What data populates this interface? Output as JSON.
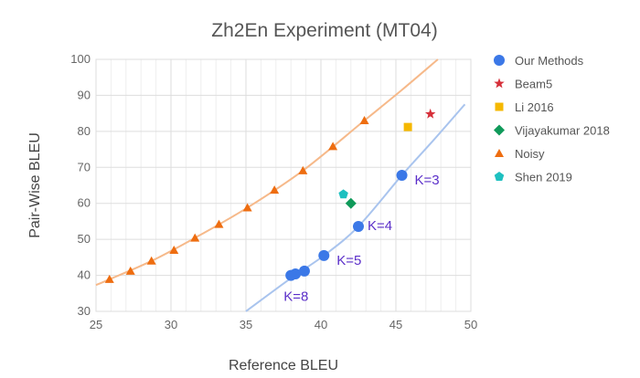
{
  "chart_data": {
    "type": "scatter",
    "title": "Zh2En Experiment (MT04)",
    "xlabel": "Reference BLEU",
    "ylabel": "Pair-Wise BLEU",
    "xlim": [
      25,
      50
    ],
    "ylim": [
      30,
      100
    ],
    "xticks": [
      25,
      30,
      35,
      40,
      45,
      50
    ],
    "yticks": [
      30,
      40,
      50,
      60,
      70,
      80,
      90,
      100
    ],
    "grid": true,
    "legend_position": "right",
    "series": [
      {
        "name": "Our Methods",
        "marker": "circle",
        "color": "#3b78e7",
        "points": [
          [
            45.4,
            67.8
          ],
          [
            42.5,
            53.6
          ],
          [
            40.2,
            45.5
          ],
          [
            38.9,
            41.2
          ],
          [
            38.3,
            40.4
          ],
          [
            38.0,
            40.0
          ]
        ],
        "trend_color": "#a9c4ee",
        "trend": [
          [
            35.0,
            30.0
          ],
          [
            38.0,
            39.2
          ],
          [
            40.2,
            45.5
          ],
          [
            42.5,
            53.6
          ],
          [
            45.4,
            67.8
          ],
          [
            47.5,
            77.5
          ],
          [
            49.6,
            87.5
          ]
        ]
      },
      {
        "name": "Beam5",
        "marker": "star",
        "color": "#d6303a",
        "points": [
          [
            47.3,
            84.8
          ]
        ]
      },
      {
        "name": "Li 2016",
        "marker": "square",
        "color": "#f5b800",
        "points": [
          [
            45.8,
            81.2
          ]
        ]
      },
      {
        "name": "Vijayakumar 2018",
        "marker": "diamond",
        "color": "#109a5a",
        "points": [
          [
            42.0,
            60.0
          ]
        ]
      },
      {
        "name": "Noisy",
        "marker": "triangle",
        "color": "#ee6d10",
        "points": [
          [
            25.9,
            38.9
          ],
          [
            27.3,
            41.2
          ],
          [
            28.7,
            44.0
          ],
          [
            30.2,
            47.0
          ],
          [
            31.6,
            50.4
          ],
          [
            33.2,
            54.2
          ],
          [
            35.1,
            58.8
          ],
          [
            36.9,
            63.7
          ],
          [
            38.8,
            69.1
          ],
          [
            40.8,
            75.8
          ],
          [
            42.9,
            83.0
          ]
        ],
        "trend_color": "#f6b98a",
        "trend": [
          [
            25.0,
            37.3
          ],
          [
            25.9,
            38.9
          ],
          [
            28.7,
            44.0
          ],
          [
            31.6,
            50.4
          ],
          [
            35.1,
            58.8
          ],
          [
            38.8,
            69.1
          ],
          [
            42.9,
            83.0
          ],
          [
            45.4,
            91.5
          ],
          [
            47.8,
            100.0
          ]
        ]
      },
      {
        "name": "Shen 2019",
        "marker": "pentagon",
        "color": "#1ec0c0",
        "points": [
          [
            41.5,
            62.5
          ]
        ]
      }
    ],
    "annotations": [
      {
        "text": "K=3",
        "x": 45.4,
        "y": 67.8
      },
      {
        "text": "K=4",
        "x": 42.5,
        "y": 53.6
      },
      {
        "text": "K=5",
        "x": 40.2,
        "y": 45.5
      },
      {
        "text": "K=8",
        "x": 38.0,
        "y": 40.0
      }
    ]
  }
}
